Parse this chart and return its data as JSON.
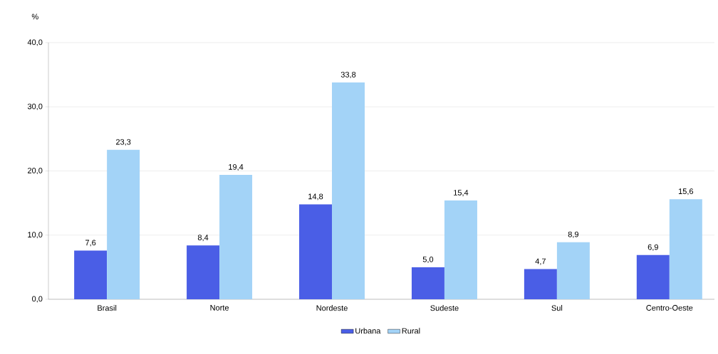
{
  "chart_data": {
    "type": "bar",
    "ylabel": "%",
    "categories": [
      "Brasil",
      "Norte",
      "Nordeste",
      "Sudeste",
      "Sul",
      "Centro-Oeste"
    ],
    "series": [
      {
        "name": "Urbana",
        "color": "#4a5ee6",
        "values": [
          7.6,
          8.4,
          14.8,
          5.0,
          4.7,
          6.9
        ],
        "value_labels": [
          "7,6",
          "8,4",
          "14,8",
          "5,0",
          "4,7",
          "6,9"
        ]
      },
      {
        "name": "Rural",
        "color": "#a3d3f7",
        "values": [
          23.3,
          19.4,
          33.8,
          15.4,
          8.9,
          15.6
        ],
        "value_labels": [
          "23,3",
          "19,4",
          "33,8",
          "15,4",
          "8,9",
          "15,6"
        ]
      }
    ],
    "ylim": [
      0,
      40
    ],
    "yticks": [
      {
        "value": 0,
        "label": "0,0"
      },
      {
        "value": 10,
        "label": "10,0"
      },
      {
        "value": 20,
        "label": "20,0"
      },
      {
        "value": 30,
        "label": "30,0"
      },
      {
        "value": 40,
        "label": "40,0"
      }
    ],
    "grid": "y",
    "legend": "bottom"
  }
}
